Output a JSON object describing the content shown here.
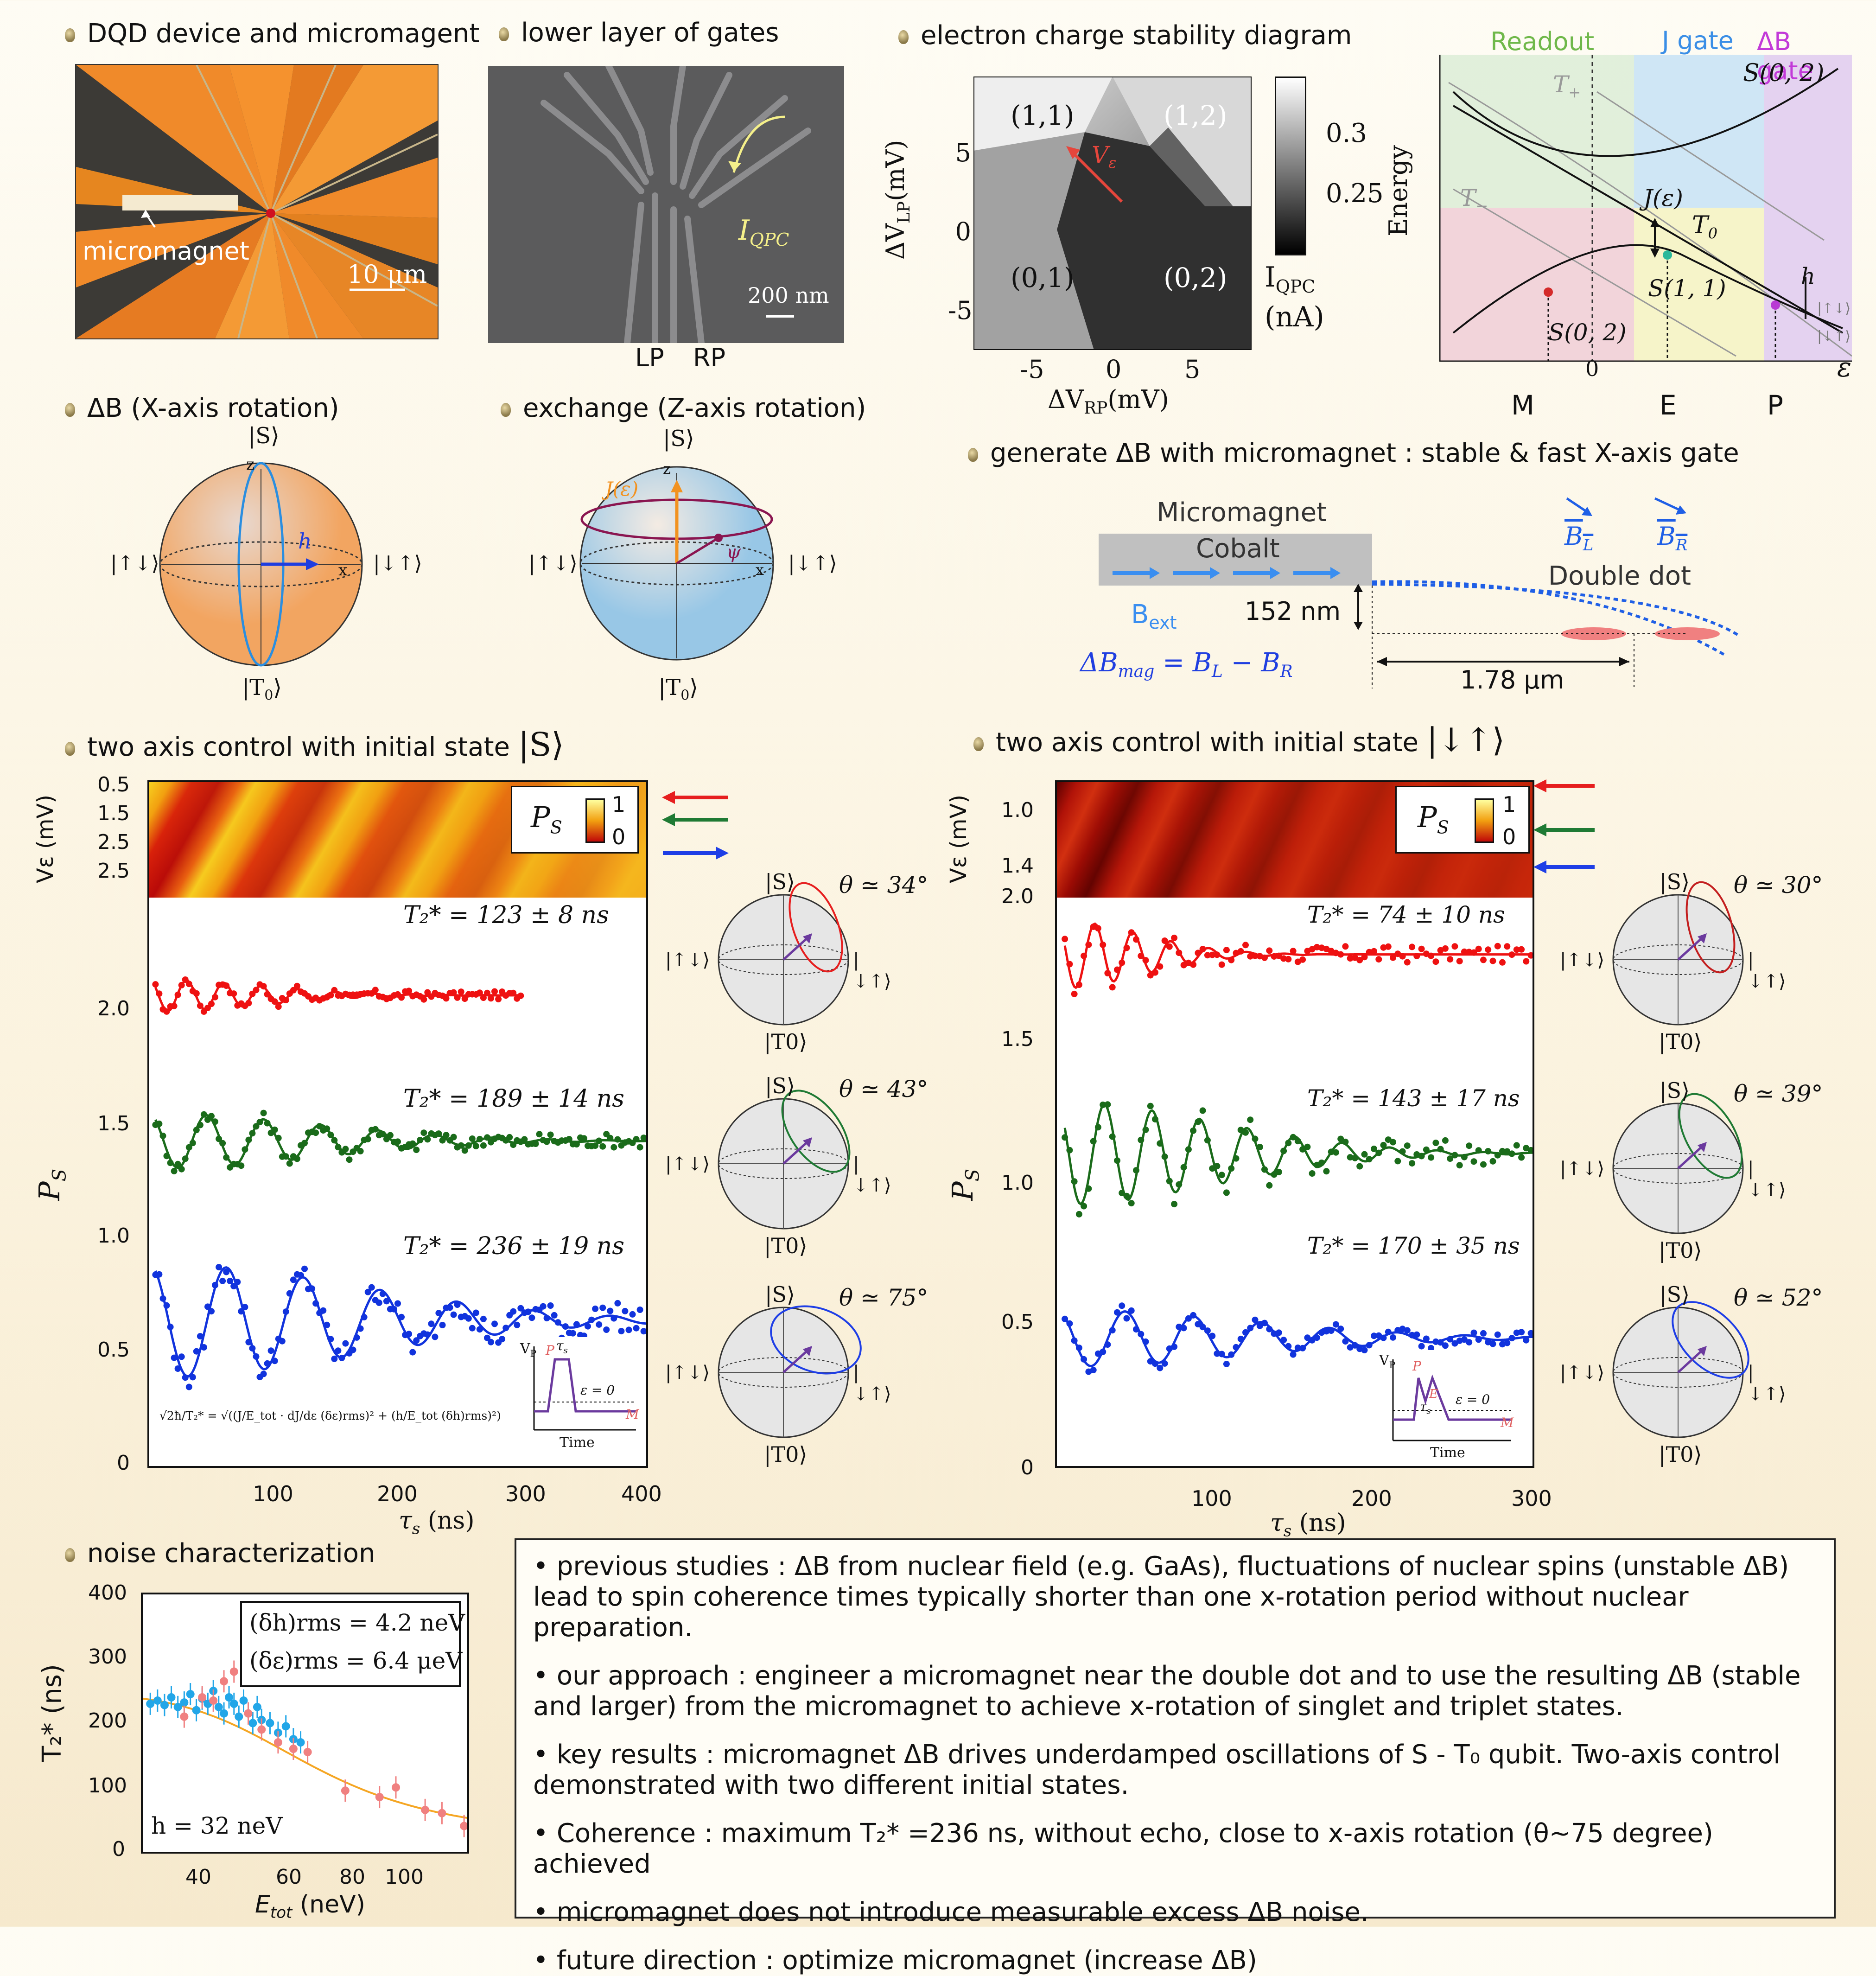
{
  "panels": {
    "device_title": "DQD device and micromagent",
    "device_micromagnet_label": "micromagnet",
    "device_scale": "10 μm",
    "gates_title": "lower layer of gates",
    "gates_qpc_label": "I",
    "gates_qpc_sub": "QPC",
    "gates_scale": "200 nm",
    "gates_lp": "LP",
    "gates_rp": "RP",
    "stability_title": "electron charge stability diagram",
    "stability_ylabel": "ΔV",
    "stability_ylabel_sub": "LP",
    "stability_ylabel_unit": "(mV)",
    "stability_xlabel": "ΔV",
    "stability_xlabel_sub": "RP",
    "stability_xlabel_unit": "(mV)",
    "stability_regions": [
      "(1,1)",
      "(1,2)",
      "(0,1)",
      "(0,2)"
    ],
    "stability_ve": "V",
    "stability_ve_sub": "ε",
    "stability_yticks": [
      "5",
      "0",
      "-5"
    ],
    "stability_xticks": [
      "-5",
      "0",
      "5"
    ],
    "stability_cbar_ticks": [
      "0.3",
      "0.25"
    ],
    "stability_cbar_label": "I",
    "stability_cbar_label_sub": "QPC",
    "stability_cbar_unit": "(nA)",
    "energy_labels": {
      "readout": "Readout",
      "j_gate": "J gate",
      "db_gate": "ΔB gate",
      "ylabel": "Energy",
      "T_plus": "T",
      "T_plus_sub": "+",
      "T_minus": "T",
      "T_minus_sub": "−",
      "S02_top": "S(0, 2)",
      "J_eps": "J(ε)",
      "T0": "T",
      "T0_sub": "0",
      "S11": "S(1, 1)",
      "S02_bottom": "S(0, 2)",
      "h": "h",
      "zero": "0",
      "eps": "ε",
      "updown": "|↑↓⟩",
      "downup": "|↓↑⟩",
      "M": "M",
      "E": "E",
      "P": "P"
    },
    "bloch_db_title": "ΔB (X-axis rotation)",
    "bloch_ex_title": "exchange (Z-axis rotation)",
    "bloch_labels": {
      "S": "|S⟩",
      "T0": "|T",
      "T0_sub": "0",
      "T0_close": "⟩",
      "updown": "|↑↓⟩",
      "downup": "|↓↑⟩",
      "h": "h",
      "J": "J(ε)",
      "psi": "ψ",
      "z": "z",
      "x": "x"
    },
    "micromagnet_title": "generate ΔB with micromagnet : stable & fast X-axis gate",
    "micromagnet_labels": {
      "micromagnet": "Micromagnet",
      "cobalt": "Cobalt",
      "bext": "B",
      "bext_sub": "ext",
      "distance": "152 nm",
      "spacing": "1.78 μm",
      "double_dot": "Double dot",
      "BL": "B",
      "BL_sub": "L",
      "BR": "B",
      "BR_sub": "R",
      "dbmag": "ΔB",
      "dbmag_sub": "mag",
      "dbmag_eq": "= B",
      "minus": "− B"
    }
  },
  "control_left": {
    "title": "two axis control with initial state",
    "state": "|S⟩",
    "heat_ylabel": "Vε (mV)",
    "heat_yticks": [
      "0.5",
      "1.5",
      "2.5",
      "2.5"
    ],
    "heat_legend": "P",
    "heat_legend_sub": "S",
    "heat_cbar": [
      "1",
      "0"
    ],
    "ylabel": "P",
    "ylabel_sub": "S",
    "xlabel": "τ",
    "xlabel_sub": "s",
    "xlabel_unit": "(ns)",
    "yticks": [
      "2.0",
      "1.5",
      "1.0",
      "0.5",
      "0"
    ],
    "xticks": [
      "100",
      "200",
      "300",
      "400"
    ],
    "t2_labels": [
      "T₂* = 123 ± 8 ns",
      "T₂* = 189 ± 14 ns",
      "T₂* = 236 ± 19 ns"
    ],
    "thetas": [
      "θ ≃ 34°",
      "θ ≃ 43°",
      "θ ≃ 75°"
    ],
    "formula": "√2ħ/T₂* = √((J/E_tot · dJ/dε (δε)rms)² + (h/E_tot (δh)rms)²)",
    "inset": {
      "vp": "V",
      "vp_sub": "P",
      "P": "P",
      "tau": "τ",
      "tau_sub": "s",
      "eps0": "ε = 0",
      "M": "M",
      "time": "Time"
    }
  },
  "control_right": {
    "title": "two axis control with initial state",
    "state": "|↓↑⟩",
    "heat_ylabel": "Vε (mV)",
    "heat_yticks": [
      "1.0",
      "1.4",
      "2.0"
    ],
    "heat_legend": "P",
    "heat_legend_sub": "S",
    "heat_cbar": [
      "1",
      "0"
    ],
    "ylabel": "P",
    "ylabel_sub": "S",
    "xlabel": "τ",
    "xlabel_sub": "s",
    "xlabel_unit": "(ns)",
    "yticks": [
      "1.5",
      "1.0",
      "0.5",
      "0"
    ],
    "xticks": [
      "100",
      "200",
      "300"
    ],
    "t2_labels": [
      "T₂* = 74 ± 10 ns",
      "T₂* = 143 ± 17 ns",
      "T₂* = 170 ± 35 ns"
    ],
    "thetas": [
      "θ ≃ 30°",
      "θ ≃ 39°",
      "θ ≃ 52°"
    ],
    "inset": {
      "vp": "V",
      "vp_sub": "P",
      "P": "P",
      "E": "E",
      "tau": "τ",
      "tau_sub": "s",
      "eps0": "ε = 0",
      "M": "M",
      "time": "Time"
    }
  },
  "noise": {
    "title": "noise characterization",
    "ylabel": "T₂* (ns)",
    "xlabel": "E",
    "xlabel_sub": "tot",
    "xlabel_unit": " (neV)",
    "yticks": [
      "400",
      "300",
      "200",
      "100",
      "0"
    ],
    "xticks": [
      "40",
      "60",
      "80",
      "100"
    ],
    "box_line1": "(δh)rms = 4.2 neV",
    "box_line2": "(δε)rms = 6.4 μeV",
    "h_label": "h = 32 neV"
  },
  "summary": {
    "items": [
      "• previous studies : ΔB from nuclear field (e.g. GaAs), fluctuations of nuclear spins (unstable ΔB) lead to spin coherence times typically shorter than one x-rotation period without nuclear preparation.",
      "• our approach : engineer a micromagnet near the double dot and to use the resulting ΔB (stable and larger) from the micromagnet to achieve x-rotation of singlet and triplet states.",
      "• key results : micromagnet ΔB drives underdamped oscillations of S - T₀ qubit. Two-axis control demonstrated with two different initial states.",
      "• Coherence : maximum T₂* =236 ns, without echo, close to x-axis rotation (θ~75 degree) achieved",
      "• micromagnet does not introduce measurable excess ΔB noise.",
      "• future direction : optimize micromagnet (increase ΔB)"
    ]
  },
  "chart_data": [
    {
      "type": "line",
      "title": "",
      "xlabel": "τs (ns)",
      "ylabel": "PS",
      "xlim": [
        0,
        400
      ],
      "ylim": [
        0,
        2.5
      ],
      "series": [
        {
          "name": "T₂* = 123 ± 8 ns",
          "offset": 2.07,
          "amp": 0.07,
          "period": 30,
          "t2": 123,
          "xmax": 300,
          "color": "#ee1111"
        },
        {
          "name": "T₂* = 189 ± 14 ns",
          "offset": 1.43,
          "amp": 0.12,
          "period": 46,
          "t2": 189,
          "xmax": 400,
          "color": "#1a6b1a"
        },
        {
          "name": "T₂* = 236 ± 19 ns",
          "offset": 0.64,
          "amp": 0.25,
          "period": 62,
          "t2": 236,
          "xmax": 400,
          "color": "#1133dd"
        }
      ]
    },
    {
      "type": "line",
      "title": "",
      "xlabel": "τs (ns)",
      "ylabel": "PS",
      "xlim": [
        0,
        300
      ],
      "ylim": [
        0,
        2.0
      ],
      "series": [
        {
          "name": "T₂* = 74 ± 10 ns",
          "offset": 1.8,
          "amp": 0.12,
          "period": 24,
          "t2": 74,
          "xmax": 300,
          "color": "#ee1111"
        },
        {
          "name": "T₂* = 143 ± 17 ns",
          "offset": 1.1,
          "amp": 0.18,
          "period": 30,
          "t2": 143,
          "xmax": 300,
          "color": "#1a6b1a"
        },
        {
          "name": "T₂* = 170 ± 35 ns",
          "offset": 0.45,
          "amp": 0.1,
          "period": 43,
          "t2": 170,
          "xmax": 300,
          "color": "#1133dd"
        }
      ]
    },
    {
      "type": "scatter",
      "title": "",
      "xlabel": "Etot (neV)",
      "ylabel": "T₂* (ns)",
      "xscale": "log",
      "xlim": [
        27,
        130
      ],
      "ylim": [
        0,
        400
      ],
      "series": [
        {
          "name": "blue",
          "color": "#22a6e8",
          "x": [
            28,
            29,
            30,
            31,
            32,
            33,
            34,
            35,
            36,
            37,
            38,
            39,
            40,
            41,
            42,
            43,
            44,
            45,
            46,
            47,
            48,
            50,
            52,
            54,
            56,
            58
          ],
          "y": [
            230,
            235,
            228,
            240,
            225,
            232,
            245,
            220,
            238,
            230,
            250,
            225,
            215,
            240,
            230,
            210,
            235,
            215,
            200,
            225,
            205,
            200,
            185,
            195,
            175,
            170
          ]
        },
        {
          "name": "pink",
          "color": "#f08080",
          "x": [
            33,
            36,
            38,
            40,
            42,
            45,
            48,
            52,
            56,
            60,
            72,
            85,
            92,
            106,
            115,
            128
          ],
          "y": [
            210,
            240,
            235,
            265,
            280,
            215,
            190,
            170,
            160,
            155,
            95,
            85,
            100,
            65,
            60,
            40
          ]
        }
      ],
      "fit": {
        "color": "#f5a623"
      }
    }
  ]
}
